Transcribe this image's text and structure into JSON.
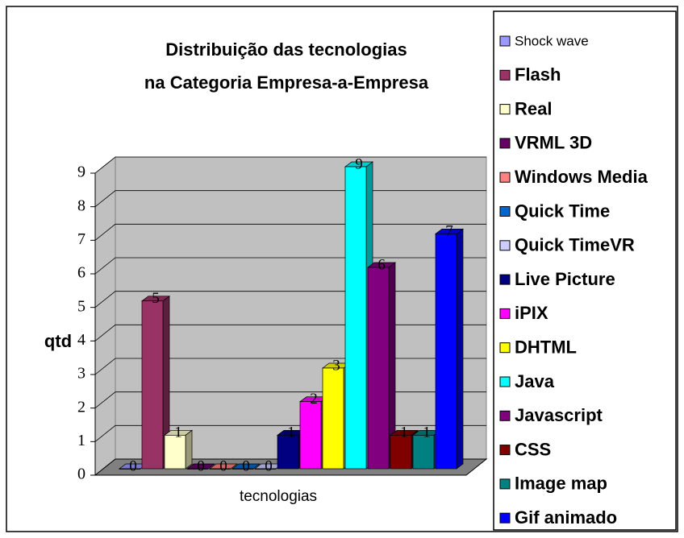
{
  "chart_data": {
    "type": "bar3d",
    "title": [
      "Distribuição das tecnologias",
      "na Categoria Empresa-a-Empresa"
    ],
    "y_label": "qtd",
    "x_label": "tecnologias",
    "ylim": [
      0,
      9
    ],
    "yticks": [
      0,
      1,
      2,
      3,
      4,
      5,
      6,
      7,
      8,
      9
    ],
    "grid": true,
    "legend_position": "right",
    "series": [
      {
        "name": "Shock wave",
        "color": "#9999ff",
        "values": [
          0
        ]
      },
      {
        "name": "Flash",
        "color": "#993366",
        "values": [
          5
        ]
      },
      {
        "name": "Real",
        "color": "#ffffcc",
        "values": [
          1
        ]
      },
      {
        "name": "VRML 3D",
        "color": "#660066",
        "values": [
          0
        ]
      },
      {
        "name": "Windows Media",
        "color": "#ff8080",
        "values": [
          0
        ]
      },
      {
        "name": "Quick Time",
        "color": "#0066cc",
        "values": [
          0
        ]
      },
      {
        "name": "Quick TimeVR",
        "color": "#ccccff",
        "values": [
          0
        ]
      },
      {
        "name": "Live Picture",
        "color": "#000080",
        "values": [
          1
        ]
      },
      {
        "name": "iPIX",
        "color": "#ff00ff",
        "values": [
          2
        ]
      },
      {
        "name": "DHTML",
        "color": "#ffff00",
        "values": [
          3
        ]
      },
      {
        "name": "Java",
        "color": "#00ffff",
        "values": [
          9
        ]
      },
      {
        "name": "Javascript",
        "color": "#800080",
        "values": [
          6
        ]
      },
      {
        "name": "CSS",
        "color": "#800000",
        "values": [
          1
        ]
      },
      {
        "name": "Image map",
        "color": "#008080",
        "values": [
          1
        ]
      },
      {
        "name": "Gif animado",
        "color": "#0000ff",
        "values": [
          7
        ]
      }
    ]
  }
}
